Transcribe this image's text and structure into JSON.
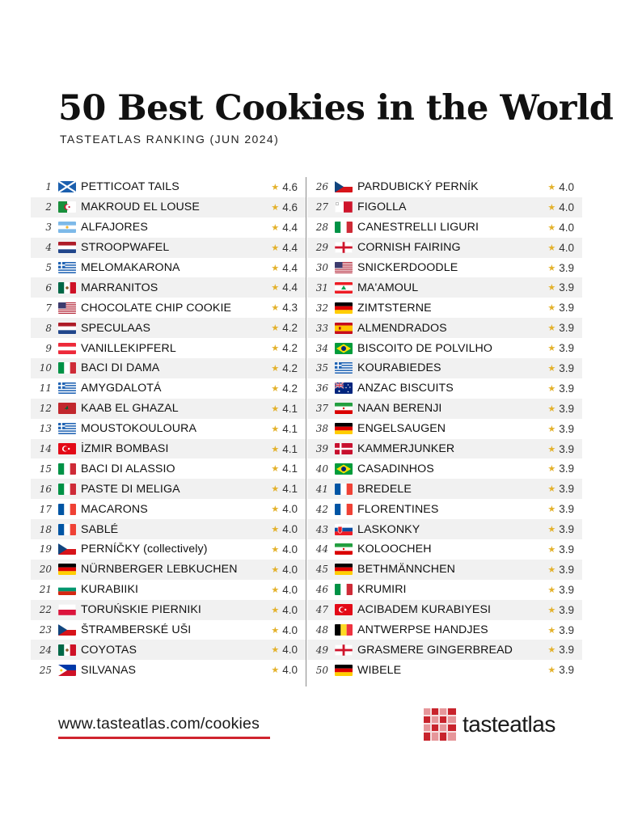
{
  "header": {
    "title": "50 Best Cookies in the World",
    "subtitle": "TASTEATLAS RANKING (JUN 2024)"
  },
  "footer": {
    "url": "www.tasteatlas.com/cookies",
    "brand": "tasteatlas"
  },
  "left_items": [
    {
      "rank": "1",
      "name": "PETTICOAT TAILS",
      "rating": "4.6",
      "flag": "scotland-flag"
    },
    {
      "rank": "2",
      "name": "MAKROUD EL LOUSE",
      "rating": "4.6",
      "flag": "algeria-flag"
    },
    {
      "rank": "3",
      "name": "ALFAJORES",
      "rating": "4.4",
      "flag": "argentina-flag"
    },
    {
      "rank": "4",
      "name": "STROOPWAFEL",
      "rating": "4.4",
      "flag": "netherlands-flag"
    },
    {
      "rank": "5",
      "name": "MELOMAKARONA",
      "rating": "4.4",
      "flag": "greece-flag"
    },
    {
      "rank": "6",
      "name": "MARRANITOS",
      "rating": "4.4",
      "flag": "mexico-flag"
    },
    {
      "rank": "7",
      "name": "CHOCOLATE CHIP COOKIE",
      "rating": "4.3",
      "flag": "usa-flag"
    },
    {
      "rank": "8",
      "name": "SPECULAAS",
      "rating": "4.2",
      "flag": "netherlands-flag"
    },
    {
      "rank": "9",
      "name": "VANILLEKIPFERL",
      "rating": "4.2",
      "flag": "austria-flag"
    },
    {
      "rank": "10",
      "name": "BACI DI DAMA",
      "rating": "4.2",
      "flag": "italy-flag"
    },
    {
      "rank": "11",
      "name": "AMYGDALOTÁ",
      "rating": "4.2",
      "flag": "greece-flag"
    },
    {
      "rank": "12",
      "name": "KAAB EL GHAZAL",
      "rating": "4.1",
      "flag": "morocco-flag"
    },
    {
      "rank": "13",
      "name": "MOUSTOKOULOURA",
      "rating": "4.1",
      "flag": "greece-flag"
    },
    {
      "rank": "14",
      "name": "İZMIR BOMBASI",
      "rating": "4.1",
      "flag": "turkey-flag"
    },
    {
      "rank": "15",
      "name": "BACI DI ALASSIO",
      "rating": "4.1",
      "flag": "italy-flag"
    },
    {
      "rank": "16",
      "name": "PASTE DI MELIGA",
      "rating": "4.1",
      "flag": "italy-flag"
    },
    {
      "rank": "17",
      "name": "MACARONS",
      "rating": "4.0",
      "flag": "france-flag"
    },
    {
      "rank": "18",
      "name": "SABLÉ",
      "rating": "4.0",
      "flag": "france-flag"
    },
    {
      "rank": "19",
      "name": "PERNÍČKY",
      "note": " (collectively)",
      "rating": "4.0",
      "flag": "czech-flag"
    },
    {
      "rank": "20",
      "name": "NÜRNBERGER LEBKUCHEN",
      "rating": "4.0",
      "flag": "germany-flag"
    },
    {
      "rank": "21",
      "name": "KURABIIKI",
      "rating": "4.0",
      "flag": "bulgaria-flag"
    },
    {
      "rank": "22",
      "name": "TORUŃSKIE PIERNIKI",
      "rating": "4.0",
      "flag": "poland-flag"
    },
    {
      "rank": "23",
      "name": "ŠTRAMBERSKÉ UŠI",
      "rating": "4.0",
      "flag": "czech-flag"
    },
    {
      "rank": "24",
      "name": "COYOTAS",
      "rating": "4.0",
      "flag": "mexico-flag"
    },
    {
      "rank": "25",
      "name": "SILVANAS",
      "rating": "4.0",
      "flag": "philippines-flag"
    }
  ],
  "right_items": [
    {
      "rank": "26",
      "name": "PARDUBICKÝ PERNÍK",
      "rating": "4.0",
      "flag": "czech-flag"
    },
    {
      "rank": "27",
      "name": "FIGOLLA",
      "rating": "4.0",
      "flag": "malta-flag"
    },
    {
      "rank": "28",
      "name": "CANESTRELLI LIGURI",
      "rating": "4.0",
      "flag": "italy-flag"
    },
    {
      "rank": "29",
      "name": "CORNISH FAIRING",
      "rating": "4.0",
      "flag": "england-flag"
    },
    {
      "rank": "30",
      "name": "SNICKERDOODLE",
      "rating": "3.9",
      "flag": "usa-flag"
    },
    {
      "rank": "31",
      "name": "MA'AMOUL",
      "rating": "3.9",
      "flag": "lebanon-flag"
    },
    {
      "rank": "32",
      "name": "ZIMTSTERNE",
      "rating": "3.9",
      "flag": "germany-flag"
    },
    {
      "rank": "33",
      "name": "ALMENDRADOS",
      "rating": "3.9",
      "flag": "spain-flag"
    },
    {
      "rank": "34",
      "name": "BISCOITO DE POLVILHO",
      "rating": "3.9",
      "flag": "brazil-flag"
    },
    {
      "rank": "35",
      "name": "KOURABIEDES",
      "rating": "3.9",
      "flag": "greece-flag"
    },
    {
      "rank": "36",
      "name": "ANZAC BISCUITS",
      "rating": "3.9",
      "flag": "australia-flag"
    },
    {
      "rank": "37",
      "name": "NAAN BERENJI",
      "rating": "3.9",
      "flag": "iran-flag"
    },
    {
      "rank": "38",
      "name": "ENGELSAUGEN",
      "rating": "3.9",
      "flag": "germany-flag"
    },
    {
      "rank": "39",
      "name": "KAMMERJUNKER",
      "rating": "3.9",
      "flag": "denmark-flag"
    },
    {
      "rank": "40",
      "name": "CASADINHOS",
      "rating": "3.9",
      "flag": "brazil-flag"
    },
    {
      "rank": "41",
      "name": "BREDELE",
      "rating": "3.9",
      "flag": "france-flag"
    },
    {
      "rank": "42",
      "name": "FLORENTINES",
      "rating": "3.9",
      "flag": "france-flag"
    },
    {
      "rank": "43",
      "name": "LASKONKY",
      "rating": "3.9",
      "flag": "slovakia-flag"
    },
    {
      "rank": "44",
      "name": "KOLOOCHEH",
      "rating": "3.9",
      "flag": "iran-flag"
    },
    {
      "rank": "45",
      "name": "BETHMÄNNCHEN",
      "rating": "3.9",
      "flag": "germany-flag"
    },
    {
      "rank": "46",
      "name": "KRUMIRI",
      "rating": "3.9",
      "flag": "italy-flag"
    },
    {
      "rank": "47",
      "name": "ACIBADEM KURABIYESI",
      "rating": "3.9",
      "flag": "turkey-flag"
    },
    {
      "rank": "48",
      "name": "ANTWERPSE HANDJES",
      "rating": "3.9",
      "flag": "belgium-flag"
    },
    {
      "rank": "49",
      "name": "GRASMERE GINGERBREAD",
      "rating": "3.9",
      "flag": "england-flag"
    },
    {
      "rank": "50",
      "name": "WIBELE",
      "rating": "3.9",
      "flag": "germany-flag"
    }
  ]
}
